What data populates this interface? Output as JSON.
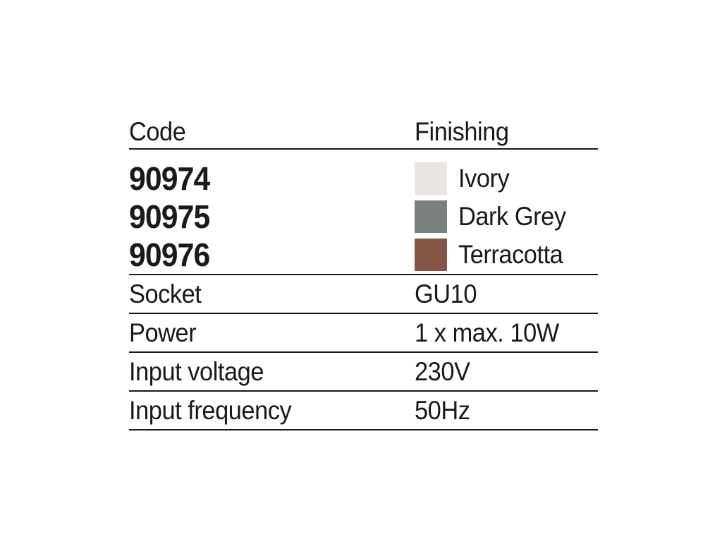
{
  "spec_table": {
    "headers": {
      "code": "Code",
      "finishing": "Finishing"
    },
    "products": [
      {
        "code": "90974",
        "finish": "Ivory",
        "swatch_color": "#e9e5e0"
      },
      {
        "code": "90975",
        "finish": "Dark Grey",
        "swatch_color": "#7a807c"
      },
      {
        "code": "90976",
        "finish": "Terracotta",
        "swatch_color": "#855546"
      }
    ],
    "specs": [
      {
        "label": "Socket",
        "value": "GU10"
      },
      {
        "label": "Power",
        "value": "1 x max. 10W"
      },
      {
        "label": "Input voltage",
        "value": "230V"
      },
      {
        "label": "Input frequency",
        "value": "50Hz"
      }
    ],
    "colors": {
      "text": "#1a1a1a",
      "rule": "#1a1a1a"
    }
  }
}
